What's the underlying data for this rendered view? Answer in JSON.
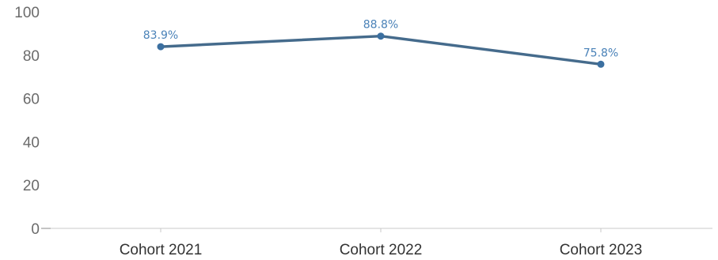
{
  "chart_data": {
    "type": "line",
    "title": "",
    "xlabel": "",
    "ylabel": "",
    "categories": [
      "Cohort 2021",
      "Cohort 2022",
      "Cohort 2023"
    ],
    "series": [
      {
        "values": [
          83.9,
          88.8,
          75.8
        ],
        "data_labels": [
          "83.9%",
          "88.8%",
          "75.8%"
        ],
        "color": "#456b8c",
        "marker_color": "#3b6fa0"
      }
    ],
    "ylim": [
      0,
      100
    ],
    "yticks": [
      0,
      20,
      40,
      60,
      80,
      100
    ],
    "ytick_labels": [
      "0",
      "20",
      "40",
      "60",
      "80",
      "100"
    ],
    "grid": false,
    "legend": "none",
    "label_color": "#4a82b8",
    "axis_color": "#c8c8c8"
  }
}
